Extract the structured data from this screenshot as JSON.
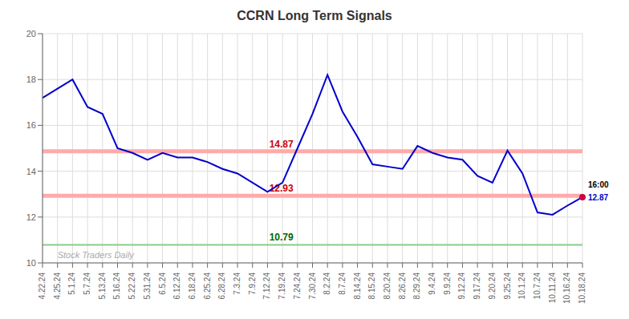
{
  "chart_data": {
    "type": "line",
    "title": "CCRN Long Term Signals",
    "categories": [
      "4.22.24",
      "4.25.24",
      "5.1.24",
      "5.7.24",
      "5.13.24",
      "5.16.24",
      "5.22.24",
      "5.31.24",
      "6.5.24",
      "6.12.24",
      "6.18.24",
      "6.25.24",
      "6.28.24",
      "7.3.24",
      "7.9.24",
      "7.12.24",
      "7.19.24",
      "7.24.24",
      "7.30.24",
      "8.2.24",
      "8.7.24",
      "8.14.24",
      "8.15.24",
      "8.20.24",
      "8.26.24",
      "8.29.24",
      "9.4.24",
      "9.9.24",
      "9.12.24",
      "9.17.24",
      "9.20.24",
      "9.25.24",
      "10.1.24",
      "10.7.24",
      "10.11.24",
      "10.16.24",
      "10.18.24"
    ],
    "values": [
      17.2,
      17.6,
      18.0,
      16.8,
      16.5,
      15.0,
      14.8,
      14.5,
      14.8,
      14.6,
      14.6,
      14.4,
      14.1,
      13.9,
      13.5,
      13.1,
      13.5,
      15.0,
      16.5,
      18.2,
      16.6,
      15.5,
      14.3,
      14.2,
      14.1,
      15.1,
      14.8,
      14.6,
      14.5,
      13.8,
      13.5,
      14.9,
      13.9,
      12.2,
      12.1,
      12.5,
      12.87
    ],
    "color": "#0000cc",
    "ylim": [
      10,
      20
    ],
    "yticks": [
      10,
      12,
      14,
      16,
      18,
      20
    ],
    "grid": true,
    "reference_lines": [
      {
        "value": 14.87,
        "color": "#ffaaaa",
        "label_color": "#cc0000"
      },
      {
        "value": 12.93,
        "color": "#ffaaaa",
        "label_color": "#cc0000"
      },
      {
        "value": 10.79,
        "color": "#88cc88",
        "label_color": "#006600"
      }
    ],
    "last_point": {
      "color": "#cc0044",
      "time_label": "16:00",
      "value_label": "12.87"
    },
    "watermark": {
      "text": "Stock Traders Daily",
      "color": "#aaaaaa"
    }
  }
}
